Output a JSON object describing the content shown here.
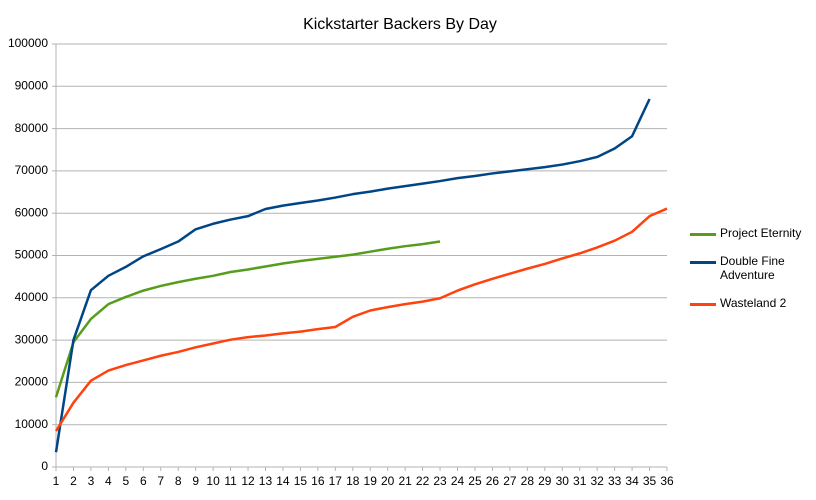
{
  "chart_data": {
    "type": "line",
    "title": "Kickstarter Backers By Day",
    "x": [
      1,
      2,
      3,
      4,
      5,
      6,
      7,
      8,
      9,
      10,
      11,
      12,
      13,
      14,
      15,
      16,
      17,
      18,
      19,
      20,
      21,
      22,
      23,
      24,
      25,
      26,
      27,
      28,
      29,
      30,
      31,
      32,
      33,
      34,
      35,
      36
    ],
    "xlim": [
      1,
      36
    ],
    "xticks": [
      1,
      2,
      3,
      4,
      5,
      6,
      7,
      8,
      9,
      10,
      11,
      12,
      13,
      14,
      15,
      16,
      17,
      18,
      19,
      20,
      21,
      22,
      23,
      24,
      25,
      26,
      27,
      28,
      29,
      30,
      31,
      32,
      33,
      34,
      35,
      36
    ],
    "ylim": [
      0,
      100000
    ],
    "yticks": [
      0,
      10000,
      20000,
      30000,
      40000,
      50000,
      60000,
      70000,
      80000,
      90000,
      100000
    ],
    "grid": true,
    "legend": "right",
    "series": [
      {
        "name": "Project Eternity",
        "color": "#579d1c",
        "values": [
          16500,
          29500,
          35000,
          38500,
          40200,
          41700,
          42800,
          43700,
          44500,
          45200,
          46100,
          46700,
          47400,
          48100,
          48700,
          49200,
          49700,
          50200,
          50900,
          51600,
          52200,
          52700,
          53300,
          null,
          null,
          null,
          null,
          null,
          null,
          null,
          null,
          null,
          null,
          null,
          null,
          null
        ]
      },
      {
        "name": "Double Fine Adventure",
        "color": "#004586",
        "values": [
          3500,
          30000,
          41800,
          45200,
          47300,
          49800,
          51500,
          53300,
          56200,
          57500,
          58500,
          59300,
          61000,
          61800,
          62400,
          63000,
          63700,
          64500,
          65100,
          65800,
          66400,
          67000,
          67600,
          68300,
          68800,
          69400,
          69900,
          70400,
          70900,
          71500,
          72300,
          73300,
          75300,
          78200,
          87000,
          null
        ]
      },
      {
        "name": "Wasteland 2",
        "color": "#ff420e",
        "values": [
          8500,
          15200,
          20400,
          22800,
          24100,
          25200,
          26300,
          27200,
          28300,
          29200,
          30100,
          30700,
          31100,
          31600,
          32000,
          32600,
          33100,
          35500,
          37000,
          37800,
          38500,
          39100,
          39900,
          41700,
          43200,
          44500,
          45700,
          46900,
          48000,
          49300,
          50500,
          51900,
          53500,
          55600,
          59300,
          61100
        ]
      }
    ]
  }
}
